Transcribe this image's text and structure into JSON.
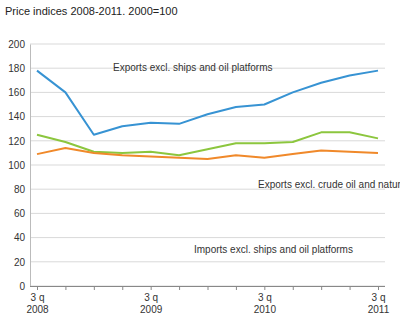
{
  "chart_data": {
    "type": "line",
    "title": "Price indices 2008-2011. 2000=100",
    "categories": [
      "3 q 2008",
      null,
      null,
      null,
      "3 q 2009",
      null,
      null,
      null,
      "3 q 2010",
      null,
      null,
      null,
      "3 q 2011"
    ],
    "series": [
      {
        "name": "Exports excl. ships and oil platforms",
        "color": "#3793d3",
        "values": [
          178,
          160,
          125,
          132,
          135,
          134,
          142,
          148,
          150,
          160,
          168,
          174,
          178
        ]
      },
      {
        "name": "Exports excl. crude oil and natural gas",
        "color": "#8cc63e",
        "values": [
          125,
          119,
          111,
          110,
          111,
          108,
          113,
          118,
          118,
          119,
          127,
          127,
          122
        ]
      },
      {
        "name": "Imports excl. ships and oil platforms",
        "color": "#f0892a",
        "values": [
          109,
          114,
          110,
          108,
          107,
          106,
          105,
          108,
          106,
          109,
          112,
          111,
          110
        ]
      }
    ],
    "ylim": [
      0,
      200
    ],
    "yticks": [
      0,
      20,
      40,
      60,
      80,
      100,
      120,
      140,
      160,
      180,
      200
    ],
    "grid": true
  }
}
